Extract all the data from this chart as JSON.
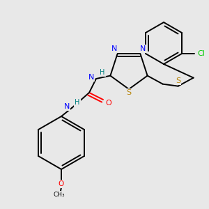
{
  "background_color": "#e8e8e8",
  "atom_colors": {
    "N": "#0000ff",
    "S": "#b8860b",
    "O": "#ff0000",
    "Cl": "#00cc00",
    "H": "#008080",
    "C": "#000000"
  },
  "bond_lw": 1.4,
  "font_size": 7.5
}
